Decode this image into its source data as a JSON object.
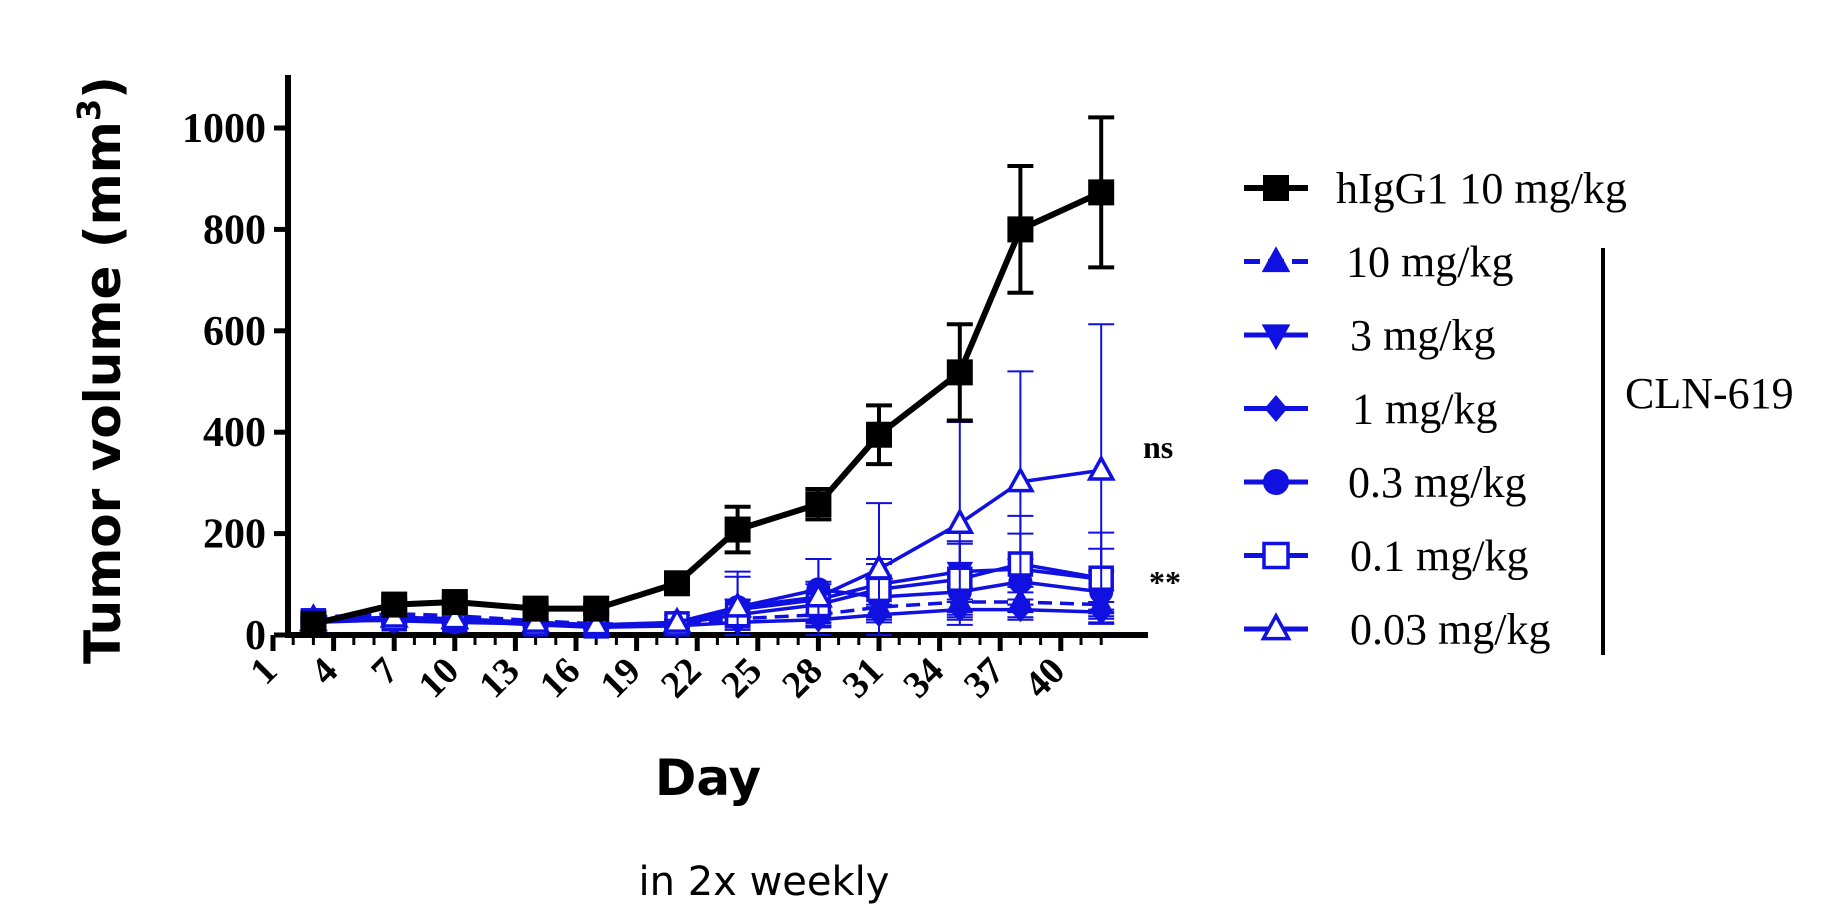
{
  "chart_data": {
    "type": "line",
    "xlabel": "Day",
    "ylabel": "Tumor volume (mm",
    "ylabel_sup": "3",
    "ylabel_close": ")",
    "subtitle": "in 2x weekly",
    "xlim": [
      0,
      43
    ],
    "ylim": [
      0,
      1100
    ],
    "x_ticks": [
      "1",
      "4",
      "7",
      "10",
      "13",
      "16",
      "19",
      "22",
      "25",
      "28",
      "31",
      "34",
      "37",
      "40"
    ],
    "y_ticks": [
      "0",
      "200",
      "400",
      "600",
      "800",
      "1000"
    ],
    "bracket_label": "CLN-619",
    "annotations": [
      {
        "text": "ns",
        "series": "0.03 mg/kg"
      },
      {
        "text": "**",
        "series": "0.1 mg/kg"
      }
    ],
    "series": [
      {
        "name": "hIgG1 10 mg/kg",
        "color": "#000000",
        "marker": "square-filled",
        "dashed": false,
        "x": [
          3,
          7,
          10,
          14,
          17,
          21,
          24,
          28,
          31,
          35,
          38,
          42
        ],
        "y": [
          22,
          60,
          65,
          52,
          52,
          102,
          208,
          258,
          395,
          518,
          800,
          873
        ],
        "err": [
          5,
          10,
          10,
          8,
          8,
          12,
          45,
          30,
          58,
          95,
          125,
          148
        ]
      },
      {
        "name": "10 mg/kg",
        "color": "#1010e0",
        "marker": "triangle-up-filled",
        "dashed": true,
        "x": [
          3,
          7,
          10,
          14,
          17,
          21,
          24,
          28,
          31,
          35,
          38,
          42
        ],
        "y": [
          35,
          42,
          38,
          28,
          22,
          20,
          32,
          40,
          55,
          65,
          65,
          60
        ],
        "err": [
          5,
          6,
          6,
          5,
          4,
          4,
          10,
          15,
          20,
          30,
          30,
          28
        ]
      },
      {
        "name": "3 mg/kg",
        "color": "#1010e0",
        "marker": "triangle-down-filled",
        "dashed": false,
        "x": [
          3,
          7,
          10,
          14,
          17,
          21,
          24,
          28,
          31,
          35,
          38,
          42
        ],
        "y": [
          30,
          35,
          30,
          25,
          20,
          20,
          50,
          70,
          100,
          125,
          130,
          110
        ],
        "err": [
          5,
          6,
          6,
          5,
          4,
          4,
          20,
          30,
          40,
          60,
          70,
          60
        ]
      },
      {
        "name": "1 mg/kg",
        "color": "#1010e0",
        "marker": "diamond-filled",
        "dashed": false,
        "x": [
          3,
          7,
          10,
          14,
          17,
          21,
          24,
          28,
          31,
          35,
          38,
          42
        ],
        "y": [
          25,
          30,
          28,
          20,
          15,
          18,
          25,
          30,
          40,
          50,
          50,
          45
        ],
        "err": [
          5,
          6,
          5,
          4,
          4,
          4,
          8,
          12,
          15,
          20,
          20,
          20
        ]
      },
      {
        "name": "0.3 mg/kg",
        "color": "#1010e0",
        "marker": "circle-filled",
        "dashed": false,
        "x": [
          3,
          7,
          10,
          14,
          17,
          21,
          24,
          28,
          31,
          35,
          38,
          42
        ],
        "y": [
          30,
          28,
          25,
          22,
          18,
          25,
          55,
          90,
          75,
          85,
          105,
          85
        ],
        "err": [
          5,
          6,
          5,
          5,
          4,
          5,
          60,
          60,
          40,
          40,
          45,
          40
        ]
      },
      {
        "name": "0.1 mg/kg",
        "color": "#1010e0",
        "marker": "square-open",
        "dashed": false,
        "x": [
          3,
          7,
          10,
          14,
          17,
          21,
          24,
          28,
          31,
          35,
          38,
          42
        ],
        "y": [
          28,
          32,
          30,
          22,
          18,
          22,
          40,
          60,
          90,
          110,
          140,
          112
        ],
        "err": [
          5,
          6,
          6,
          5,
          4,
          4,
          30,
          45,
          60,
          70,
          95,
          90
        ]
      },
      {
        "name": "0.03 mg/kg",
        "color": "#1010e0",
        "marker": "triangle-up-open",
        "dashed": false,
        "x": [
          3,
          7,
          10,
          14,
          17,
          21,
          24,
          28,
          31,
          35,
          38,
          42
        ],
        "y": [
          28,
          35,
          32,
          25,
          20,
          25,
          55,
          75,
          130,
          220,
          302,
          325
        ],
        "err": [
          5,
          6,
          6,
          5,
          4,
          5,
          70,
          75,
          130,
          200,
          218,
          288
        ]
      }
    ]
  }
}
